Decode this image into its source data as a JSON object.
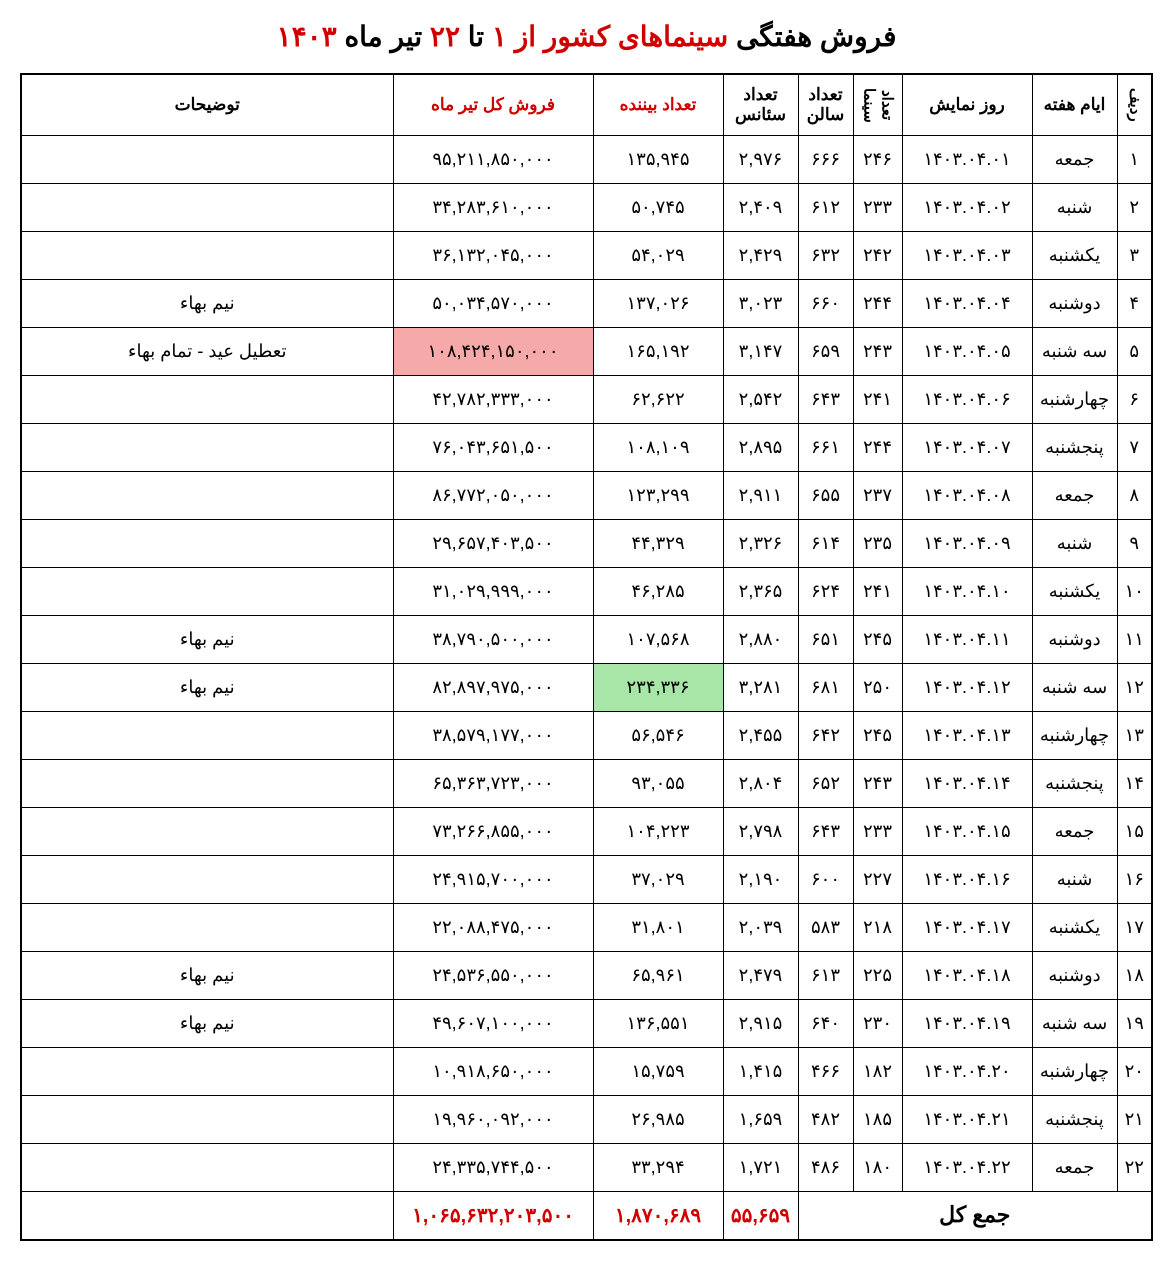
{
  "title_parts": {
    "p1": "فروش هفتگی",
    "p2": " سینماهای کشور از ",
    "p3": "۱",
    "p4": " تا ",
    "p5": "۲۲",
    "p6": " تیر ماه ",
    "p7": "۱۴۰۳"
  },
  "columns": {
    "idx": "ردیف",
    "day": "ایام هفته",
    "date": "روز نمایش",
    "cinema": "تعداد سینما",
    "hall": "تعداد سالن",
    "session": "تعداد سئانس",
    "viewer": "تعداد بیننده",
    "sale": "فروش کل تیر ماه",
    "note": "توضیحات"
  },
  "rows": [
    {
      "idx": "۱",
      "day": "جمعه",
      "date": "۱۴۰۳.۰۴.۰۱",
      "cinema": "۲۴۶",
      "hall": "۶۶۶",
      "session": "۲,۹۷۶",
      "viewer": "۱۳۵,۹۴۵",
      "sale": "۹۵,۲۱۱,۸۵۰,۰۰۰",
      "note": ""
    },
    {
      "idx": "۲",
      "day": "شنبه",
      "date": "۱۴۰۳.۰۴.۰۲",
      "cinema": "۲۳۳",
      "hall": "۶۱۲",
      "session": "۲,۴۰۹",
      "viewer": "۵۰,۷۴۵",
      "sale": "۳۴,۲۸۳,۶۱۰,۰۰۰",
      "note": ""
    },
    {
      "idx": "۳",
      "day": "یکشنبه",
      "date": "۱۴۰۳.۰۴.۰۳",
      "cinema": "۲۴۲",
      "hall": "۶۳۲",
      "session": "۲,۴۲۹",
      "viewer": "۵۴,۰۲۹",
      "sale": "۳۶,۱۳۲,۰۴۵,۰۰۰",
      "note": ""
    },
    {
      "idx": "۴",
      "day": "دوشنبه",
      "date": "۱۴۰۳.۰۴.۰۴",
      "cinema": "۲۴۴",
      "hall": "۶۶۰",
      "session": "۳,۰۲۳",
      "viewer": "۱۳۷,۰۲۶",
      "sale": "۵۰,۰۳۴,۵۷۰,۰۰۰",
      "note": "نیم بهاء"
    },
    {
      "idx": "۵",
      "day": "سه شنبه",
      "date": "۱۴۰۳.۰۴.۰۵",
      "cinema": "۲۴۳",
      "hall": "۶۵۹",
      "session": "۳,۱۴۷",
      "viewer": "۱۶۵,۱۹۲",
      "sale": "۱۰۸,۴۲۴,۱۵۰,۰۰۰",
      "note": "تعطیل عید - تمام بهاء",
      "sale_hl": "red"
    },
    {
      "idx": "۶",
      "day": "چهارشنبه",
      "date": "۱۴۰۳.۰۴.۰۶",
      "cinema": "۲۴۱",
      "hall": "۶۴۳",
      "session": "۲,۵۴۲",
      "viewer": "۶۲,۶۲۲",
      "sale": "۴۲,۷۸۲,۳۳۳,۰۰۰",
      "note": ""
    },
    {
      "idx": "۷",
      "day": "پنجشنبه",
      "date": "۱۴۰۳.۰۴.۰۷",
      "cinema": "۲۴۴",
      "hall": "۶۶۱",
      "session": "۲,۸۹۵",
      "viewer": "۱۰۸,۱۰۹",
      "sale": "۷۶,۰۴۳,۶۵۱,۵۰۰",
      "note": ""
    },
    {
      "idx": "۸",
      "day": "جمعه",
      "date": "۱۴۰۳.۰۴.۰۸",
      "cinema": "۲۳۷",
      "hall": "۶۵۵",
      "session": "۲,۹۱۱",
      "viewer": "۱۲۳,۲۹۹",
      "sale": "۸۶,۷۷۲,۰۵۰,۰۰۰",
      "note": ""
    },
    {
      "idx": "۹",
      "day": "شنبه",
      "date": "۱۴۰۳.۰۴.۰۹",
      "cinema": "۲۳۵",
      "hall": "۶۱۴",
      "session": "۲,۳۲۶",
      "viewer": "۴۴,۳۲۹",
      "sale": "۲۹,۶۵۷,۴۰۳,۵۰۰",
      "note": ""
    },
    {
      "idx": "۱۰",
      "day": "یکشنبه",
      "date": "۱۴۰۳.۰۴.۱۰",
      "cinema": "۲۴۱",
      "hall": "۶۲۴",
      "session": "۲,۳۶۵",
      "viewer": "۴۶,۲۸۵",
      "sale": "۳۱,۰۲۹,۹۹۹,۰۰۰",
      "note": ""
    },
    {
      "idx": "۱۱",
      "day": "دوشنبه",
      "date": "۱۴۰۳.۰۴.۱۱",
      "cinema": "۲۴۵",
      "hall": "۶۵۱",
      "session": "۲,۸۸۰",
      "viewer": "۱۰۷,۵۶۸",
      "sale": "۳۸,۷۹۰,۵۰۰,۰۰۰",
      "note": "نیم بهاء"
    },
    {
      "idx": "۱۲",
      "day": "سه شنبه",
      "date": "۱۴۰۳.۰۴.۱۲",
      "cinema": "۲۵۰",
      "hall": "۶۸۱",
      "session": "۳,۲۸۱",
      "viewer": "۲۳۴,۳۳۶",
      "sale": "۸۲,۸۹۷,۹۷۵,۰۰۰",
      "note": "نیم بهاء",
      "viewer_hl": "green"
    },
    {
      "idx": "۱۳",
      "day": "چهارشنبه",
      "date": "۱۴۰۳.۰۴.۱۳",
      "cinema": "۲۴۵",
      "hall": "۶۴۲",
      "session": "۲,۴۵۵",
      "viewer": "۵۶,۵۴۶",
      "sale": "۳۸,۵۷۹,۱۷۷,۰۰۰",
      "note": ""
    },
    {
      "idx": "۱۴",
      "day": "پنجشنبه",
      "date": "۱۴۰۳.۰۴.۱۴",
      "cinema": "۲۴۳",
      "hall": "۶۵۲",
      "session": "۲,۸۰۴",
      "viewer": "۹۳,۰۵۵",
      "sale": "۶۵,۳۶۳,۷۲۳,۰۰۰",
      "note": ""
    },
    {
      "idx": "۱۵",
      "day": "جمعه",
      "date": "۱۴۰۳.۰۴.۱۵",
      "cinema": "۲۳۳",
      "hall": "۶۴۳",
      "session": "۲,۷۹۸",
      "viewer": "۱۰۴,۲۲۳",
      "sale": "۷۳,۲۶۶,۸۵۵,۰۰۰",
      "note": ""
    },
    {
      "idx": "۱۶",
      "day": "شنبه",
      "date": "۱۴۰۳.۰۴.۱۶",
      "cinema": "۲۲۷",
      "hall": "۶۰۰",
      "session": "۲,۱۹۰",
      "viewer": "۳۷,۰۲۹",
      "sale": "۲۴,۹۱۵,۷۰۰,۰۰۰",
      "note": ""
    },
    {
      "idx": "۱۷",
      "day": "یکشنبه",
      "date": "۱۴۰۳.۰۴.۱۷",
      "cinema": "۲۱۸",
      "hall": "۵۸۳",
      "session": "۲,۰۳۹",
      "viewer": "۳۱,۸۰۱",
      "sale": "۲۲,۰۸۸,۴۷۵,۰۰۰",
      "note": ""
    },
    {
      "idx": "۱۸",
      "day": "دوشنبه",
      "date": "۱۴۰۳.۰۴.۱۸",
      "cinema": "۲۲۵",
      "hall": "۶۱۳",
      "session": "۲,۴۷۹",
      "viewer": "۶۵,۹۶۱",
      "sale": "۲۴,۵۳۶,۵۵۰,۰۰۰",
      "note": "نیم بهاء"
    },
    {
      "idx": "۱۹",
      "day": "سه شنبه",
      "date": "۱۴۰۳.۰۴.۱۹",
      "cinema": "۲۳۰",
      "hall": "۶۴۰",
      "session": "۲,۹۱۵",
      "viewer": "۱۳۶,۵۵۱",
      "sale": "۴۹,۶۰۷,۱۰۰,۰۰۰",
      "note": "نیم بهاء"
    },
    {
      "idx": "۲۰",
      "day": "چهارشنبه",
      "date": "۱۴۰۳.۰۴.۲۰",
      "cinema": "۱۸۲",
      "hall": "۴۶۶",
      "session": "۱,۴۱۵",
      "viewer": "۱۵,۷۵۹",
      "sale": "۱۰,۹۱۸,۶۵۰,۰۰۰",
      "note": ""
    },
    {
      "idx": "۲۱",
      "day": "پنجشنبه",
      "date": "۱۴۰۳.۰۴.۲۱",
      "cinema": "۱۸۵",
      "hall": "۴۸۲",
      "session": "۱,۶۵۹",
      "viewer": "۲۶,۹۸۵",
      "sale": "۱۹,۹۶۰,۰۹۲,۰۰۰",
      "note": ""
    },
    {
      "idx": "۲۲",
      "day": "جمعه",
      "date": "۱۴۰۳.۰۴.۲۲",
      "cinema": "۱۸۰",
      "hall": "۴۸۶",
      "session": "۱,۷۲۱",
      "viewer": "۳۳,۲۹۴",
      "sale": "۲۴,۳۳۵,۷۴۴,۵۰۰",
      "note": ""
    }
  ],
  "footer": {
    "label": "جمع کل",
    "session": "۵۵,۶۵۹",
    "viewer": "۱,۸۷۰,۶۸۹",
    "sale": "۱,۰۶۵,۶۳۲,۲۰۳,۵۰۰"
  },
  "colors": {
    "red_text": "#d00000",
    "hl_red": "#f5a9a9",
    "hl_green": "#a8e6a8",
    "border": "#000000",
    "bg": "#ffffff"
  }
}
